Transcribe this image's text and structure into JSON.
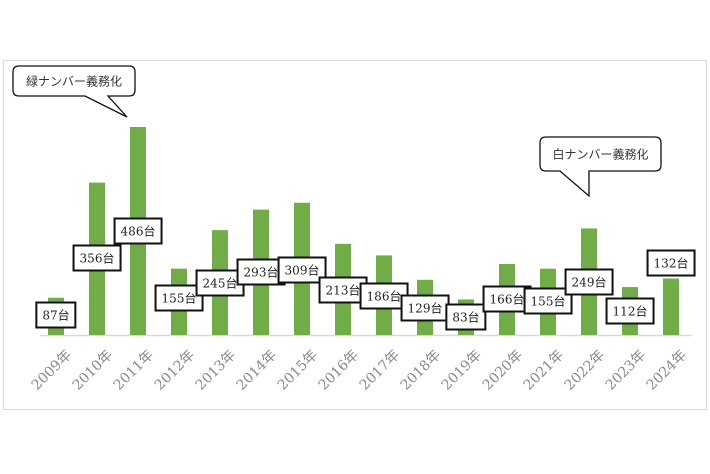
{
  "chart_data": {
    "type": "bar",
    "title": "",
    "xlabel": "",
    "ylabel": "",
    "categories": [
      "2009年",
      "2010年",
      "2011年",
      "2012年",
      "2013年",
      "2014年",
      "2015年",
      "2016年",
      "2017年",
      "2018年",
      "2019年",
      "2020年",
      "2021年",
      "2022年",
      "2023年",
      "2024年"
    ],
    "values": [
      87,
      356,
      486,
      155,
      245,
      293,
      309,
      213,
      186,
      129,
      83,
      166,
      155,
      249,
      112,
      132
    ],
    "data_labels": [
      "87台",
      "356台",
      "486台",
      "155台",
      "245台",
      "293台",
      "309台",
      "213台",
      "186台",
      "129台",
      "83台",
      "166台",
      "155台",
      "249台",
      "112台",
      "132台"
    ],
    "ylim": [
      0,
      486
    ],
    "grid": false,
    "bar_color": "#70ad47",
    "annotations": [
      {
        "text": "緑ナンバー義務化",
        "category": "2011年"
      },
      {
        "text": "白ナンバー義務化",
        "category": "2022年"
      }
    ]
  }
}
